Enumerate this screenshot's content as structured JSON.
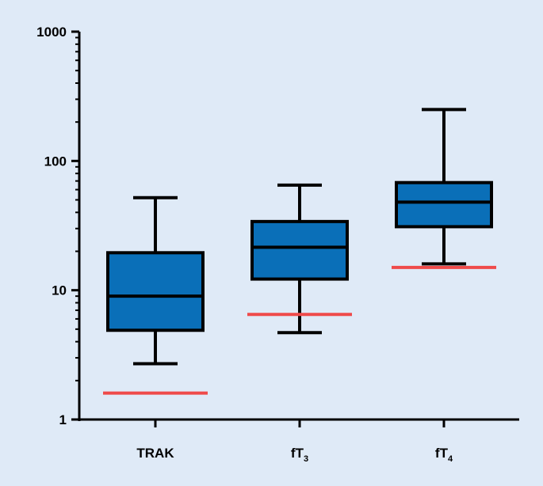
{
  "chart_data": {
    "type": "box",
    "title": "",
    "xlabel": "",
    "ylabel": "",
    "y_scale": "log",
    "ylim": [
      1,
      1000
    ],
    "y_ticks": [
      {
        "value": 1,
        "label": "1"
      },
      {
        "value": 10,
        "label": "10"
      },
      {
        "value": 100,
        "label": "100"
      },
      {
        "value": 1000,
        "label": "1000"
      }
    ],
    "grid": false,
    "legend": "none",
    "colors": {
      "background": "#dfeaf7",
      "box_fill": "#0a6fb8",
      "outline": "#000000",
      "reference_line": "#ef4a4a"
    },
    "categories": [
      {
        "label": "TRAK",
        "main": "TRAK",
        "sub": ""
      },
      {
        "label": "fT3",
        "main": "fT",
        "sub": "3"
      },
      {
        "label": "fT4",
        "main": "fT",
        "sub": "4"
      }
    ],
    "boxes": [
      {
        "min": 2.7,
        "q1": 4.9,
        "median": 9.0,
        "q3": 19.5,
        "max": 52,
        "reference": 1.6
      },
      {
        "min": 4.7,
        "q1": 12.2,
        "median": 21.5,
        "q3": 34,
        "max": 65,
        "reference": 6.5
      },
      {
        "min": 16,
        "q1": 31,
        "median": 48,
        "q3": 68,
        "max": 250,
        "reference": 15
      }
    ]
  }
}
